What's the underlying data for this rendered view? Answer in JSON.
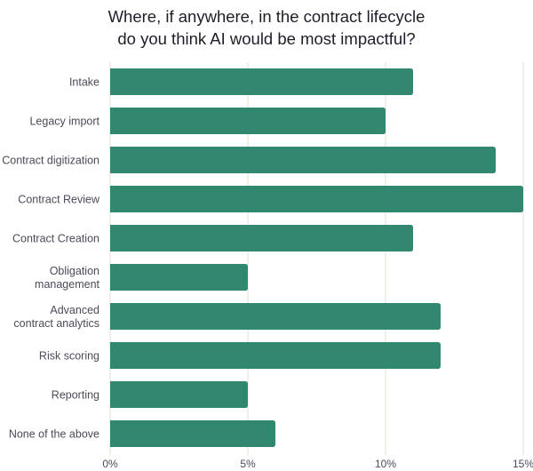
{
  "chart_data": {
    "type": "bar",
    "orientation": "horizontal",
    "title": [
      "Where, if anywhere, in the contract lifecycle",
      "do you think AI would be most impactful?"
    ],
    "categories": [
      [
        "Intake"
      ],
      [
        "Legacy import"
      ],
      [
        "Contract digitization"
      ],
      [
        "Contract Review"
      ],
      [
        "Contract Creation"
      ],
      [
        "Obligation",
        "management"
      ],
      [
        "Advanced",
        "contract analytics"
      ],
      [
        "Risk scoring"
      ],
      [
        "Reporting"
      ],
      [
        "None of the above"
      ]
    ],
    "values": [
      11,
      10,
      14,
      15,
      11,
      5,
      12,
      12,
      5,
      6
    ],
    "xlim": [
      0,
      15
    ],
    "xticks": [
      0,
      5,
      10,
      15
    ],
    "xtick_labels": [
      "0%",
      "5%",
      "10%",
      "15%"
    ],
    "xlabel": "",
    "ylabel": "",
    "grid": true,
    "bar_color": "#31876f",
    "grid_color": "#e6ddd6"
  }
}
